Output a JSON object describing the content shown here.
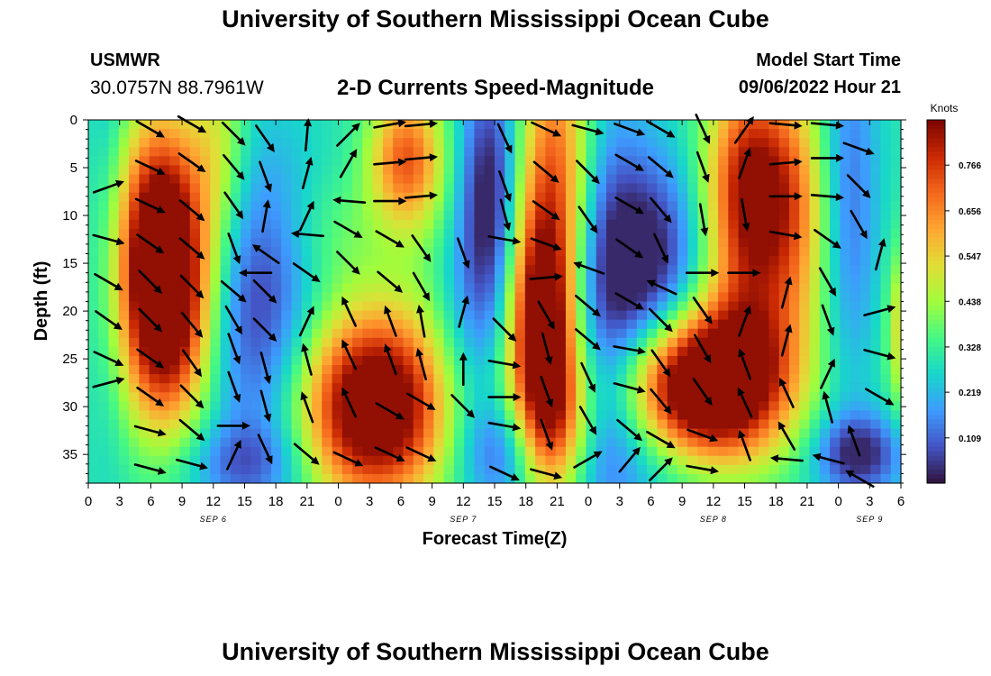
{
  "header": {
    "title": "University of Southern Mississippi Ocean Cube",
    "station_name": "USMWR",
    "station_coords": "30.0757N  88.7961W",
    "plot_title": "2-D Currents Speed-Magnitude",
    "model_label": "Model Start Time",
    "model_time": "09/06/2022 Hour 21",
    "footer_title": "University of Southern Mississippi Ocean Cube"
  },
  "chart_data": {
    "type": "heatmap",
    "title": "2-D Currents Speed-Magnitude",
    "xlabel": "Forecast Time(Z)",
    "ylabel": "Depth (ft)",
    "x_tick_labels": [
      "0",
      "3",
      "6",
      "9",
      "12",
      "15",
      "18",
      "21",
      "0",
      "3",
      "6",
      "9",
      "12",
      "15",
      "18",
      "21",
      "0",
      "3",
      "6",
      "9",
      "12",
      "15",
      "18",
      "21",
      "0",
      "3",
      "6"
    ],
    "x_range_hours": [
      0,
      78
    ],
    "date_labels": [
      {
        "hour": 12,
        "text": "SEP 6"
      },
      {
        "hour": 36,
        "text": "SEP 7"
      },
      {
        "hour": 60,
        "text": "SEP 8"
      },
      {
        "hour": 75,
        "text": "SEP 9"
      }
    ],
    "y_ticks": [
      0,
      5,
      10,
      15,
      20,
      25,
      30,
      35
    ],
    "y_range_ft": [
      0,
      38
    ],
    "colorbar": {
      "units": "Knots",
      "range": [
        0,
        0.875
      ],
      "ticks": [
        "0.766",
        "0.656",
        "0.547",
        "0.438",
        "0.328",
        "0.219",
        "0.109"
      ],
      "tick_values": [
        0.766,
        0.656,
        0.547,
        0.438,
        0.328,
        0.219,
        0.109
      ],
      "palette": [
        "#30123b",
        "#4454c4",
        "#3e9bfe",
        "#18d6cb",
        "#46f884",
        "#a2fc3c",
        "#e1dd37",
        "#fea632",
        "#f4661c",
        "#c92903",
        "#7a0403"
      ]
    },
    "speed_features": [
      {
        "t": 7.0,
        "d": 12.0,
        "st": 3.0,
        "sd": 9.0,
        "a": 0.62
      },
      {
        "t": 7.5,
        "d": 22.0,
        "st": 3.0,
        "sd": 8.0,
        "a": 0.45
      },
      {
        "t": 2.0,
        "d": 8.0,
        "st": 1.5,
        "sd": 20.0,
        "a": -0.08
      },
      {
        "t": 12.5,
        "d": 3.0,
        "st": 2.0,
        "sd": 8.0,
        "a": 0.18
      },
      {
        "t": 16.5,
        "d": 20.0,
        "st": 4.0,
        "sd": 12.0,
        "a": -0.25
      },
      {
        "t": 15.0,
        "d": 36.0,
        "st": 4.0,
        "sd": 3.0,
        "a": -0.15
      },
      {
        "t": 23.5,
        "d": 12.0,
        "st": 4.0,
        "sd": 4.5,
        "a": 0.08
      },
      {
        "t": 27.5,
        "d": 30.0,
        "st": 5.0,
        "sd": 7.0,
        "a": 0.72
      },
      {
        "t": 30.5,
        "d": 4.0,
        "st": 2.5,
        "sd": 5.0,
        "a": 0.4
      },
      {
        "t": 33.0,
        "d": 12.0,
        "st": 3.0,
        "sd": 8.0,
        "a": 0.05
      },
      {
        "t": 36.0,
        "d": 22.0,
        "st": 2.5,
        "sd": 10.0,
        "a": -0.12
      },
      {
        "t": 38.5,
        "d": 8.0,
        "st": 2.0,
        "sd": 10.0,
        "a": -0.3
      },
      {
        "t": 40.0,
        "d": 35.0,
        "st": 3.0,
        "sd": 4.0,
        "a": -0.2
      },
      {
        "t": 43.5,
        "d": 22.0,
        "st": 2.2,
        "sd": 9.0,
        "a": 0.6
      },
      {
        "t": 45.0,
        "d": 5.0,
        "st": 2.5,
        "sd": 12.0,
        "a": 0.4
      },
      {
        "t": 45.0,
        "d": 32.0,
        "st": 2.5,
        "sd": 6.0,
        "a": 0.35
      },
      {
        "t": 49.0,
        "d": 20.0,
        "st": 3.0,
        "sd": 20.0,
        "a": -0.15
      },
      {
        "t": 53.5,
        "d": 15.0,
        "st": 4.0,
        "sd": 8.0,
        "a": -0.3
      },
      {
        "t": 52.0,
        "d": 35.0,
        "st": 5.0,
        "sd": 5.0,
        "a": -0.1
      },
      {
        "t": 57.0,
        "d": 28.0,
        "st": 4.0,
        "sd": 5.0,
        "a": 0.55
      },
      {
        "t": 62.5,
        "d": 27.0,
        "st": 4.0,
        "sd": 6.0,
        "a": 0.55
      },
      {
        "t": 63.5,
        "d": 8.0,
        "st": 3.0,
        "sd": 9.0,
        "a": 0.58
      },
      {
        "t": 68.0,
        "d": 10.0,
        "st": 2.5,
        "sd": 10.0,
        "a": 0.25
      },
      {
        "t": 73.0,
        "d": 8.0,
        "st": 2.0,
        "sd": 14.0,
        "a": -0.18
      },
      {
        "t": 74.0,
        "d": 35.0,
        "st": 3.0,
        "sd": 3.0,
        "a": -0.28
      },
      {
        "t": 78.5,
        "d": 22.0,
        "st": 1.2,
        "sd": 6.0,
        "a": 0.28
      }
    ],
    "current_vectors": [
      {
        "t": 2.0,
        "d": 7.0,
        "deg": -20
      },
      {
        "t": 2.0,
        "d": 12.5,
        "deg": 15
      },
      {
        "t": 2.0,
        "d": 17.0,
        "deg": 30
      },
      {
        "t": 2.0,
        "d": 21.0,
        "deg": 35
      },
      {
        "t": 2.0,
        "d": 25.0,
        "deg": 25
      },
      {
        "t": 2.0,
        "d": 27.5,
        "deg": -15
      },
      {
        "t": 6.0,
        "d": 1.0,
        "deg": 30
      },
      {
        "t": 6.0,
        "d": 5.0,
        "deg": 25
      },
      {
        "t": 6.0,
        "d": 9.0,
        "deg": 25
      },
      {
        "t": 6.0,
        "d": 13.0,
        "deg": 35
      },
      {
        "t": 6.0,
        "d": 17.0,
        "deg": 45
      },
      {
        "t": 6.0,
        "d": 21.0,
        "deg": 45
      },
      {
        "t": 6.0,
        "d": 25.0,
        "deg": 35
      },
      {
        "t": 6.0,
        "d": 29.0,
        "deg": 35
      },
      {
        "t": 6.0,
        "d": 32.5,
        "deg": 15
      },
      {
        "t": 6.0,
        "d": 36.5,
        "deg": 15
      },
      {
        "t": 10.0,
        "d": 0.5,
        "deg": 30
      },
      {
        "t": 10.0,
        "d": 4.5,
        "deg": 35
      },
      {
        "t": 10.0,
        "d": 9.5,
        "deg": 40
      },
      {
        "t": 10.0,
        "d": 13.5,
        "deg": 40
      },
      {
        "t": 10.0,
        "d": 17.5,
        "deg": 45
      },
      {
        "t": 10.0,
        "d": 21.5,
        "deg": 50
      },
      {
        "t": 10.0,
        "d": 25.5,
        "deg": 55
      },
      {
        "t": 10.0,
        "d": 29.0,
        "deg": 45
      },
      {
        "t": 10.0,
        "d": 32.5,
        "deg": 40
      },
      {
        "t": 10.0,
        "d": 36.0,
        "deg": 15
      },
      {
        "t": 14.0,
        "d": 1.5,
        "deg": 45
      },
      {
        "t": 14.0,
        "d": 5.0,
        "deg": 50
      },
      {
        "t": 14.0,
        "d": 9.0,
        "deg": 55
      },
      {
        "t": 14.0,
        "d": 13.5,
        "deg": 70
      },
      {
        "t": 14.0,
        "d": 18.0,
        "deg": 40
      },
      {
        "t": 14.0,
        "d": 21.0,
        "deg": 60
      },
      {
        "t": 14.0,
        "d": 24.0,
        "deg": 70
      },
      {
        "t": 14.0,
        "d": 28.0,
        "deg": 70
      },
      {
        "t": 14.0,
        "d": 32.0,
        "deg": 0
      },
      {
        "t": 14.0,
        "d": 35.0,
        "deg": -65
      },
      {
        "t": 16.0,
        "d": 16.0,
        "deg": 180
      },
      {
        "t": 17.0,
        "d": 2.0,
        "deg": 55
      },
      {
        "t": 17.0,
        "d": 6.0,
        "deg": 70
      },
      {
        "t": 17.0,
        "d": 10.0,
        "deg": -80
      },
      {
        "t": 17.0,
        "d": 14.0,
        "deg": -145
      },
      {
        "t": 17.0,
        "d": 18.0,
        "deg": 45
      },
      {
        "t": 17.0,
        "d": 22.0,
        "deg": 45
      },
      {
        "t": 17.0,
        "d": 26.0,
        "deg": 75
      },
      {
        "t": 17.0,
        "d": 30.0,
        "deg": 75
      },
      {
        "t": 17.0,
        "d": 34.5,
        "deg": 65
      },
      {
        "t": 21.0,
        "d": 1.5,
        "deg": -85
      },
      {
        "t": 21.0,
        "d": 5.5,
        "deg": -75
      },
      {
        "t": 21.0,
        "d": 10.0,
        "deg": -65
      },
      {
        "t": 21.0,
        "d": 12.0,
        "deg": -175
      },
      {
        "t": 21.0,
        "d": 16.0,
        "deg": 35
      },
      {
        "t": 21.0,
        "d": 21.0,
        "deg": -65
      },
      {
        "t": 21.0,
        "d": 25.0,
        "deg": -105
      },
      {
        "t": 21.0,
        "d": 30.0,
        "deg": -110
      },
      {
        "t": 21.0,
        "d": 35.0,
        "deg": 40
      },
      {
        "t": 25.0,
        "d": 1.5,
        "deg": -45
      },
      {
        "t": 25.0,
        "d": 4.5,
        "deg": -60
      },
      {
        "t": 25.0,
        "d": 8.5,
        "deg": -175
      },
      {
        "t": 25.0,
        "d": 11.5,
        "deg": 30
      },
      {
        "t": 25.0,
        "d": 15.0,
        "deg": 45
      },
      {
        "t": 25.0,
        "d": 20.0,
        "deg": -115
      },
      {
        "t": 25.0,
        "d": 24.5,
        "deg": -115
      },
      {
        "t": 25.0,
        "d": 29.5,
        "deg": -115
      },
      {
        "t": 25.0,
        "d": 35.5,
        "deg": 25
      },
      {
        "t": 29.0,
        "d": 0.5,
        "deg": -10
      },
      {
        "t": 29.0,
        "d": 4.5,
        "deg": -5
      },
      {
        "t": 29.0,
        "d": 8.5,
        "deg": 0
      },
      {
        "t": 29.0,
        "d": 12.5,
        "deg": 30
      },
      {
        "t": 29.0,
        "d": 17.0,
        "deg": 40
      },
      {
        "t": 29.0,
        "d": 21.0,
        "deg": -110
      },
      {
        "t": 29.0,
        "d": 25.0,
        "deg": -110
      },
      {
        "t": 29.0,
        "d": 30.5,
        "deg": 30
      },
      {
        "t": 29.0,
        "d": 35.0,
        "deg": 25
      },
      {
        "t": 32.0,
        "d": 0.5,
        "deg": -5
      },
      {
        "t": 32.0,
        "d": 4.0,
        "deg": -5
      },
      {
        "t": 32.0,
        "d": 8.0,
        "deg": -5
      },
      {
        "t": 32.0,
        "d": 13.5,
        "deg": 55
      },
      {
        "t": 32.0,
        "d": 17.5,
        "deg": 60
      },
      {
        "t": 32.0,
        "d": 21.0,
        "deg": -100
      },
      {
        "t": 32.0,
        "d": 25.5,
        "deg": -105
      },
      {
        "t": 32.0,
        "d": 29.5,
        "deg": 30
      },
      {
        "t": 32.0,
        "d": 35.0,
        "deg": 25
      },
      {
        "t": 36.0,
        "d": 14.0,
        "deg": 70
      },
      {
        "t": 36.0,
        "d": 20.0,
        "deg": -75
      },
      {
        "t": 36.0,
        "d": 26.0,
        "deg": -90
      },
      {
        "t": 36.0,
        "d": 30.0,
        "deg": 45
      },
      {
        "t": 40.0,
        "d": 2.0,
        "deg": 65
      },
      {
        "t": 40.0,
        "d": 7.0,
        "deg": 70
      },
      {
        "t": 40.0,
        "d": 10.0,
        "deg": 75
      },
      {
        "t": 40.0,
        "d": 12.5,
        "deg": 10
      },
      {
        "t": 40.0,
        "d": 22.0,
        "deg": 45
      },
      {
        "t": 40.0,
        "d": 25.5,
        "deg": 10
      },
      {
        "t": 40.0,
        "d": 29.0,
        "deg": 0
      },
      {
        "t": 40.0,
        "d": 32.0,
        "deg": 10
      },
      {
        "t": 40.0,
        "d": 37.0,
        "deg": 25
      },
      {
        "t": 44.0,
        "d": 1.0,
        "deg": 25
      },
      {
        "t": 44.0,
        "d": 5.5,
        "deg": 40
      },
      {
        "t": 44.0,
        "d": 9.5,
        "deg": 35
      },
      {
        "t": 44.0,
        "d": 13.0,
        "deg": 20
      },
      {
        "t": 44.0,
        "d": 16.5,
        "deg": -5
      },
      {
        "t": 44.0,
        "d": 20.5,
        "deg": 60
      },
      {
        "t": 44.0,
        "d": 24.0,
        "deg": 75
      },
      {
        "t": 44.0,
        "d": 28.5,
        "deg": 70
      },
      {
        "t": 44.0,
        "d": 33.0,
        "deg": 70
      },
      {
        "t": 44.0,
        "d": 37.0,
        "deg": 15
      },
      {
        "t": 48.0,
        "d": 1.0,
        "deg": 15
      },
      {
        "t": 48.0,
        "d": 5.5,
        "deg": 45
      },
      {
        "t": 48.0,
        "d": 10.5,
        "deg": 55
      },
      {
        "t": 48.0,
        "d": 15.5,
        "deg": -160
      },
      {
        "t": 48.0,
        "d": 19.5,
        "deg": 40
      },
      {
        "t": 48.0,
        "d": 23.0,
        "deg": 40
      },
      {
        "t": 48.0,
        "d": 27.0,
        "deg": 65
      },
      {
        "t": 48.0,
        "d": 31.5,
        "deg": 60
      },
      {
        "t": 48.0,
        "d": 35.5,
        "deg": -30
      },
      {
        "t": 52.0,
        "d": 1.0,
        "deg": 20
      },
      {
        "t": 52.0,
        "d": 4.5,
        "deg": 30
      },
      {
        "t": 52.0,
        "d": 9.0,
        "deg": 30
      },
      {
        "t": 52.0,
        "d": 13.5,
        "deg": 35
      },
      {
        "t": 52.0,
        "d": 19.0,
        "deg": 30
      },
      {
        "t": 52.0,
        "d": 24.0,
        "deg": 10
      },
      {
        "t": 52.0,
        "d": 28.0,
        "deg": 15
      },
      {
        "t": 52.0,
        "d": 32.5,
        "deg": 40
      },
      {
        "t": 52.0,
        "d": 35.5,
        "deg": -50
      },
      {
        "t": 55.0,
        "d": 1.0,
        "deg": 30
      },
      {
        "t": 55.0,
        "d": 5.0,
        "deg": 40
      },
      {
        "t": 55.0,
        "d": 9.5,
        "deg": 50
      },
      {
        "t": 55.0,
        "d": 13.5,
        "deg": 65
      },
      {
        "t": 55.0,
        "d": 17.5,
        "deg": -155
      },
      {
        "t": 55.0,
        "d": 21.0,
        "deg": 45
      },
      {
        "t": 55.0,
        "d": 25.5,
        "deg": 55
      },
      {
        "t": 55.0,
        "d": 29.5,
        "deg": 50
      },
      {
        "t": 55.0,
        "d": 33.5,
        "deg": 30
      },
      {
        "t": 55.0,
        "d": 36.5,
        "deg": -45
      },
      {
        "t": 59.0,
        "d": 1.0,
        "deg": 65
      },
      {
        "t": 59.0,
        "d": 5.0,
        "deg": 70
      },
      {
        "t": 59.0,
        "d": 10.5,
        "deg": 80
      },
      {
        "t": 59.0,
        "d": 16.0,
        "deg": 0
      },
      {
        "t": 59.0,
        "d": 20.0,
        "deg": 55
      },
      {
        "t": 59.0,
        "d": 24.0,
        "deg": 60
      },
      {
        "t": 59.0,
        "d": 28.5,
        "deg": 55
      },
      {
        "t": 59.0,
        "d": 33.0,
        "deg": 20
      },
      {
        "t": 59.0,
        "d": 36.5,
        "deg": 10
      },
      {
        "t": 63.0,
        "d": 1.0,
        "deg": -55
      },
      {
        "t": 63.0,
        "d": 4.5,
        "deg": -70
      },
      {
        "t": 63.0,
        "d": 10.0,
        "deg": 80
      },
      {
        "t": 63.0,
        "d": 16.0,
        "deg": 0
      },
      {
        "t": 63.0,
        "d": 21.0,
        "deg": -70
      },
      {
        "t": 63.0,
        "d": 25.5,
        "deg": -110
      },
      {
        "t": 63.0,
        "d": 29.5,
        "deg": -115
      },
      {
        "t": 63.0,
        "d": 34.0,
        "deg": -110
      },
      {
        "t": 67.0,
        "d": 0.5,
        "deg": 5
      },
      {
        "t": 67.0,
        "d": 4.5,
        "deg": -5
      },
      {
        "t": 67.0,
        "d": 8.0,
        "deg": 0
      },
      {
        "t": 67.0,
        "d": 12.0,
        "deg": 10
      },
      {
        "t": 67.0,
        "d": 18.0,
        "deg": -75
      },
      {
        "t": 67.0,
        "d": 23.0,
        "deg": -75
      },
      {
        "t": 67.0,
        "d": 28.5,
        "deg": -115
      },
      {
        "t": 67.0,
        "d": 33.0,
        "deg": -120
      },
      {
        "t": 67.0,
        "d": 35.5,
        "deg": -175
      },
      {
        "t": 71.0,
        "d": 0.5,
        "deg": 5
      },
      {
        "t": 71.0,
        "d": 4.0,
        "deg": 0
      },
      {
        "t": 71.0,
        "d": 8.0,
        "deg": 5
      },
      {
        "t": 71.0,
        "d": 12.5,
        "deg": 35
      },
      {
        "t": 71.0,
        "d": 17.0,
        "deg": 60
      },
      {
        "t": 71.0,
        "d": 21.0,
        "deg": 70
      },
      {
        "t": 71.0,
        "d": 26.5,
        "deg": -65
      },
      {
        "t": 71.0,
        "d": 30.0,
        "deg": -105
      },
      {
        "t": 71.0,
        "d": 35.5,
        "deg": -165
      },
      {
        "t": 74.0,
        "d": 3.0,
        "deg": 20
      },
      {
        "t": 74.0,
        "d": 7.0,
        "deg": 45
      },
      {
        "t": 74.0,
        "d": 11.0,
        "deg": 60
      },
      {
        "t": 74.0,
        "d": 37.5,
        "deg": -150
      },
      {
        "t": 76.0,
        "d": 14.0,
        "deg": -75
      },
      {
        "t": 76.0,
        "d": 20.0,
        "deg": -15
      },
      {
        "t": 76.0,
        "d": 24.5,
        "deg": 15
      },
      {
        "t": 76.0,
        "d": 29.0,
        "deg": 30
      },
      {
        "t": 73.5,
        "d": 33.5,
        "deg": -110
      }
    ]
  }
}
